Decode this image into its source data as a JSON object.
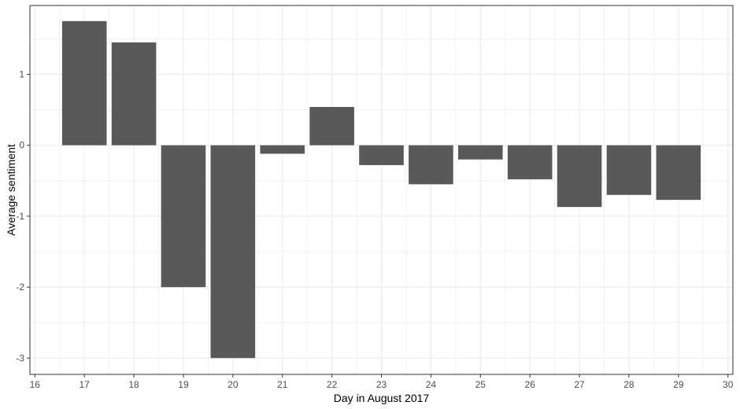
{
  "chart_data": {
    "type": "bar",
    "xlabel": "Day in August 2017",
    "ylabel": "Average sentiment",
    "x": [
      17,
      18,
      19,
      20,
      21,
      22,
      23,
      24,
      25,
      26,
      27,
      28,
      29
    ],
    "values": [
      1.75,
      1.45,
      -2.0,
      -3.0,
      -0.12,
      0.54,
      -0.28,
      -0.55,
      -0.2,
      -0.48,
      -0.87,
      -0.7,
      -0.77
    ],
    "xlim": [
      15.9,
      30.1
    ],
    "ylim": [
      -3.23,
      1.97
    ],
    "xticks": [
      16,
      17,
      18,
      19,
      20,
      21,
      22,
      23,
      24,
      25,
      26,
      27,
      28,
      29,
      30
    ],
    "yticks": [
      -3,
      -2,
      -1,
      0,
      1
    ],
    "bar_width": 0.9,
    "grid": true,
    "legend": "none",
    "colors": {
      "bar": "#595959",
      "grid": "#ebebeb",
      "panel_border": "#333333",
      "background": "#ffffff"
    }
  }
}
